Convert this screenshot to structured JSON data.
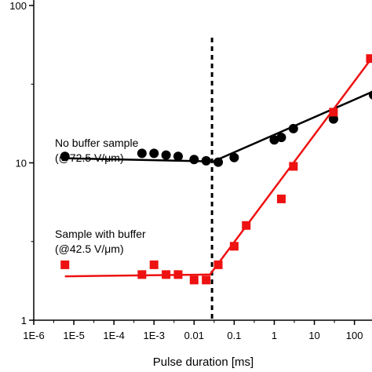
{
  "chart_data": {
    "type": "scatter",
    "xlabel": "Pulse duration  [ms]",
    "ylabel": "",
    "xscale": "log",
    "yscale": "log",
    "xlim": [
      1e-06,
      300
    ],
    "ylim": [
      1,
      100
    ],
    "x_tick_labels": [
      "1E-6",
      "1E-5",
      "1E-4",
      "1E-3",
      "0.01",
      "0.1",
      "1",
      "10",
      "100"
    ],
    "x_tick_values": [
      1e-06,
      1e-05,
      0.0001,
      0.001,
      0.01,
      0.1,
      1,
      10,
      100
    ],
    "y_tick_labels": [
      "1",
      "10",
      "100"
    ],
    "y_tick_values": [
      1,
      10,
      100
    ],
    "vertical_reference_line": {
      "x": 0.028,
      "style": "dashed",
      "color": "#000000"
    },
    "annotations": [
      {
        "lines": [
          "No buffer sample",
          "(@72.5 V/μm)"
        ]
      },
      {
        "lines": [
          "Sample with buffer",
          "(@42.5 V/μm)"
        ]
      }
    ],
    "series": [
      {
        "color": "#000000",
        "marker": "circle",
        "points": [
          [
            6e-06,
            11
          ],
          [
            0.0005,
            11.5
          ],
          [
            0.001,
            11.5
          ],
          [
            0.002,
            11.2
          ],
          [
            0.004,
            11
          ],
          [
            0.01,
            10.5
          ],
          [
            0.02,
            10.3
          ],
          [
            0.04,
            10.1
          ],
          [
            0.1,
            10.8
          ],
          [
            1,
            14
          ],
          [
            1.5,
            14.5
          ],
          [
            3,
            16.5
          ],
          [
            30,
            19
          ],
          [
            300,
            27
          ]
        ],
        "fit": [
          {
            "x": 6e-06,
            "y": 10.7
          },
          {
            "x": 0.03,
            "y": 10.2
          },
          {
            "x": 300,
            "y": 28.5
          }
        ]
      },
      {
        "color": "#ee1111",
        "marker": "square",
        "points": [
          [
            6e-06,
            2.25
          ],
          [
            0.0005,
            1.95
          ],
          [
            0.001,
            2.25
          ],
          [
            0.002,
            1.95
          ],
          [
            0.004,
            1.95
          ],
          [
            0.01,
            1.8
          ],
          [
            0.02,
            1.8
          ],
          [
            0.04,
            2.25
          ],
          [
            0.1,
            2.95
          ],
          [
            0.2,
            4
          ],
          [
            1.5,
            5.9
          ],
          [
            3,
            9.5
          ],
          [
            30,
            21
          ],
          [
            250,
            46
          ]
        ],
        "fit": [
          {
            "x": 6e-06,
            "y": 1.9
          },
          {
            "x": 0.025,
            "y": 1.95
          },
          {
            "x": 300,
            "y": 48
          }
        ]
      }
    ]
  }
}
